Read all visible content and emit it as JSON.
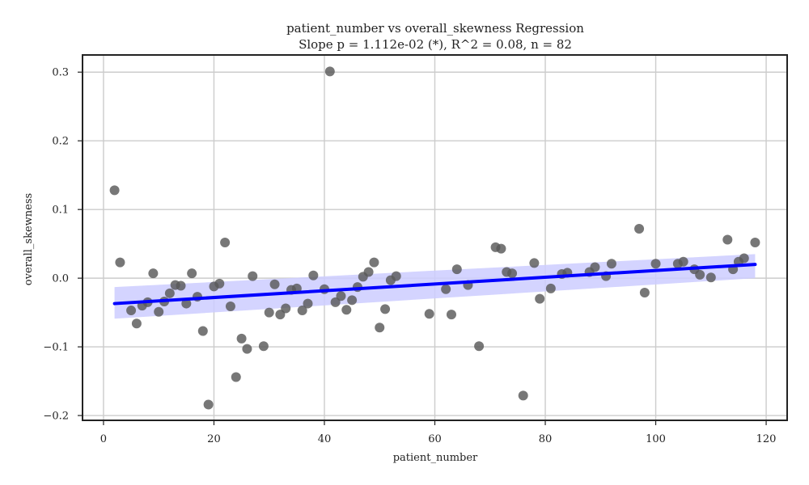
{
  "chart_data": {
    "type": "scatter",
    "title": "patient_number vs overall_skewness Regression",
    "subtitle": "Slope p = 1.112e-02 (*), R^2 = 0.08, n = 82",
    "xlabel": "patient_number",
    "ylabel": "overall_skewness",
    "xlim": [
      -3.8,
      123.8
    ],
    "ylim": [
      -0.207,
      0.325
    ],
    "xticks": [
      0,
      20,
      40,
      60,
      80,
      100,
      120
    ],
    "yticks": [
      -0.2,
      -0.1,
      0.0,
      0.1,
      0.2,
      0.3
    ],
    "xtick_labels": [
      "0",
      "20",
      "40",
      "60",
      "80",
      "100",
      "120"
    ],
    "ytick_labels": [
      "−0.2",
      "−0.1",
      "0.0",
      "0.1",
      "0.2",
      "0.3"
    ],
    "grid": true,
    "colors": {
      "points": "#595959",
      "regression_line": "#0000ff",
      "confidence_band": "#ccccff"
    },
    "regression": {
      "x_start": 2,
      "y_start": -0.037,
      "x_end": 118,
      "y_end": 0.02
    },
    "confidence_band": {
      "x": [
        2,
        118
      ],
      "lower": [
        -0.059,
        0.0
      ],
      "upper": [
        -0.013,
        0.035
      ]
    },
    "points": [
      {
        "x": 2,
        "y": 0.128
      },
      {
        "x": 3,
        "y": 0.023
      },
      {
        "x": 5,
        "y": -0.047
      },
      {
        "x": 6,
        "y": -0.066
      },
      {
        "x": 7,
        "y": -0.04
      },
      {
        "x": 8,
        "y": -0.035
      },
      {
        "x": 9,
        "y": 0.007
      },
      {
        "x": 10,
        "y": -0.049
      },
      {
        "x": 11,
        "y": -0.034
      },
      {
        "x": 12,
        "y": -0.022
      },
      {
        "x": 13,
        "y": -0.01
      },
      {
        "x": 14,
        "y": -0.011
      },
      {
        "x": 15,
        "y": -0.037
      },
      {
        "x": 16,
        "y": 0.007
      },
      {
        "x": 17,
        "y": -0.027
      },
      {
        "x": 18,
        "y": -0.077
      },
      {
        "x": 19,
        "y": -0.184
      },
      {
        "x": 20,
        "y": -0.012
      },
      {
        "x": 21,
        "y": -0.008
      },
      {
        "x": 22,
        "y": 0.052
      },
      {
        "x": 23,
        "y": -0.041
      },
      {
        "x": 24,
        "y": -0.144
      },
      {
        "x": 25,
        "y": -0.088
      },
      {
        "x": 26,
        "y": -0.103
      },
      {
        "x": 27,
        "y": 0.003
      },
      {
        "x": 29,
        "y": -0.099
      },
      {
        "x": 30,
        "y": -0.05
      },
      {
        "x": 31,
        "y": -0.009
      },
      {
        "x": 32,
        "y": -0.053
      },
      {
        "x": 33,
        "y": -0.044
      },
      {
        "x": 34,
        "y": -0.017
      },
      {
        "x": 35,
        "y": -0.015
      },
      {
        "x": 36,
        "y": -0.047
      },
      {
        "x": 37,
        "y": -0.037
      },
      {
        "x": 38,
        "y": 0.004
      },
      {
        "x": 40,
        "y": -0.016
      },
      {
        "x": 41,
        "y": 0.301
      },
      {
        "x": 42,
        "y": -0.035
      },
      {
        "x": 43,
        "y": -0.026
      },
      {
        "x": 44,
        "y": -0.046
      },
      {
        "x": 45,
        "y": -0.032
      },
      {
        "x": 46,
        "y": -0.013
      },
      {
        "x": 47,
        "y": 0.002
      },
      {
        "x": 48,
        "y": 0.009
      },
      {
        "x": 49,
        "y": 0.023
      },
      {
        "x": 50,
        "y": -0.072
      },
      {
        "x": 51,
        "y": -0.045
      },
      {
        "x": 52,
        "y": -0.003
      },
      {
        "x": 53,
        "y": 0.003
      },
      {
        "x": 59,
        "y": -0.052
      },
      {
        "x": 62,
        "y": -0.016
      },
      {
        "x": 63,
        "y": -0.053
      },
      {
        "x": 64,
        "y": 0.013
      },
      {
        "x": 66,
        "y": -0.01
      },
      {
        "x": 68,
        "y": -0.099
      },
      {
        "x": 71,
        "y": 0.045
      },
      {
        "x": 72,
        "y": 0.043
      },
      {
        "x": 73,
        "y": 0.009
      },
      {
        "x": 74,
        "y": 0.007
      },
      {
        "x": 76,
        "y": -0.171
      },
      {
        "x": 78,
        "y": 0.022
      },
      {
        "x": 79,
        "y": -0.03
      },
      {
        "x": 81,
        "y": -0.015
      },
      {
        "x": 83,
        "y": 0.006
      },
      {
        "x": 84,
        "y": 0.008
      },
      {
        "x": 88,
        "y": 0.009
      },
      {
        "x": 89,
        "y": 0.016
      },
      {
        "x": 91,
        "y": 0.003
      },
      {
        "x": 92,
        "y": 0.021
      },
      {
        "x": 97,
        "y": 0.072
      },
      {
        "x": 98,
        "y": -0.021
      },
      {
        "x": 100,
        "y": 0.021
      },
      {
        "x": 104,
        "y": 0.021
      },
      {
        "x": 105,
        "y": 0.024
      },
      {
        "x": 107,
        "y": 0.013
      },
      {
        "x": 108,
        "y": 0.005
      },
      {
        "x": 110,
        "y": 0.001
      },
      {
        "x": 113,
        "y": 0.056
      },
      {
        "x": 114,
        "y": 0.013
      },
      {
        "x": 115,
        "y": 0.024
      },
      {
        "x": 116,
        "y": 0.029
      },
      {
        "x": 118,
        "y": 0.052
      }
    ]
  }
}
